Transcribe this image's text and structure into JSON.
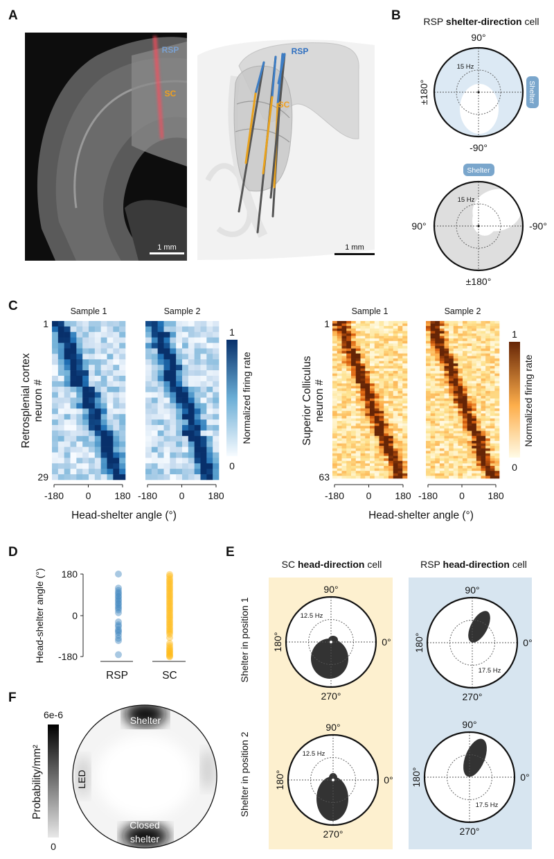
{
  "panels": {
    "a": "A",
    "b": "B",
    "c": "C",
    "d": "D",
    "e": "E",
    "f": "F"
  },
  "colors": {
    "rsp_blue": "#2c7bb6",
    "sc_orange": "#f0a020",
    "rsp_bg": "#d7e5f0",
    "sc_bg": "#fdf0cf",
    "shelter_badge": "#7aa6cc",
    "blob": "#333333"
  },
  "panel_a": {
    "region_rsp": "RSP",
    "region_sc": "SC",
    "scalebar_histology": "1 mm",
    "scalebar_3d": "1 mm"
  },
  "panel_b": {
    "title_prefix": "RSP ",
    "title_bold": "shelter-direction",
    "title_suffix": " cell",
    "top": {
      "north": "90°",
      "south": "-90°",
      "west": "±180°",
      "rate": "15 Hz",
      "shelter": "Shelter"
    },
    "bottom": {
      "north_badge": "Shelter",
      "west": "90°",
      "east": "-90°",
      "south": "±180°",
      "rate": "15 Hz"
    }
  },
  "panel_c": {
    "rsp": {
      "ylabel_1": "Retrosplenial cortex",
      "ylabel_2": "neuron #",
      "first_row": "1",
      "last_row": "29",
      "rows": 29,
      "cols": 12,
      "samples": [
        "Sample 1",
        "Sample 2"
      ],
      "colorbar_max": "1",
      "colorbar_min": "0",
      "colorbar_label": "Normalized firing rate"
    },
    "sc": {
      "ylabel_1": "Superior Colliculus",
      "ylabel_2": "neuron #",
      "first_row": "1",
      "last_row": "63",
      "rows": 63,
      "cols": 16,
      "samples": [
        "Sample 1",
        "Sample 2"
      ],
      "colorbar_max": "1",
      "colorbar_min": "0",
      "colorbar_label": "Normalized firing rate"
    },
    "xticks": [
      "-180",
      "0",
      "180"
    ],
    "xlabel": "Head-shelter angle (°)"
  },
  "chart_data": {
    "type": "scatter",
    "title": "",
    "ylabel": "Head-shelter angle (°)",
    "ylim": [
      -180,
      180
    ],
    "yticks": [
      "180",
      "0",
      "-180"
    ],
    "categories": [
      "RSP",
      "SC"
    ],
    "series": [
      {
        "name": "RSP",
        "values": [
          180,
          119,
          109,
          100,
          94,
          85,
          79,
          70,
          64,
          55,
          49,
          40,
          33,
          25,
          13,
          -27,
          -40,
          -47,
          -60,
          -67,
          -73,
          -85,
          -98,
          -108,
          -169
        ]
      },
      {
        "name": "SC",
        "values": [
          178,
          170,
          160,
          152,
          145,
          138,
          130,
          122,
          115,
          108,
          100,
          92,
          85,
          78,
          70,
          62,
          55,
          48,
          40,
          32,
          25,
          18,
          10,
          2,
          -5,
          -12,
          -20,
          -28,
          -35,
          -42,
          -50,
          -58,
          -65,
          -72,
          -80,
          -95,
          -120,
          -130,
          -138,
          -145,
          -150,
          -155,
          -160,
          -165,
          -170,
          -175,
          -178
        ]
      }
    ]
  },
  "panel_e": {
    "sc_title_prefix": "SC ",
    "title_bold": "head-direction",
    "title_suffix": " cell",
    "rsp_title_prefix": "RSP ",
    "row1": "Shelter in position 1",
    "row2": "Shelter in position 2",
    "deg_n": "90°",
    "deg_s": "270°",
    "deg_w": "180°",
    "deg_e": "0°",
    "sc_rate": "12.5 Hz",
    "rsp_rate": "17.5 Hz"
  },
  "panel_f": {
    "colorbar_max": "6e-6",
    "colorbar_min": "0",
    "colorbar_label": "Probability/mm²",
    "shelter": "Shelter",
    "closed_1": "Closed",
    "closed_2": "shelter",
    "led": "LED"
  }
}
